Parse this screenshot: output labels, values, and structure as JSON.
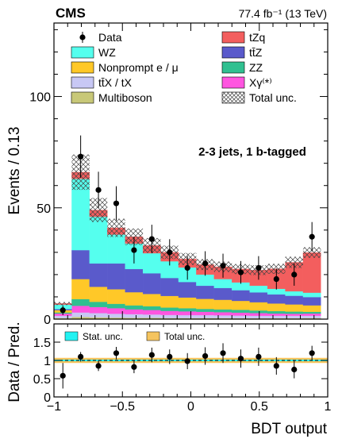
{
  "header": {
    "experiment": "CMS",
    "lumi": "77.4 fb⁻¹ (13 TeV)"
  },
  "main_panel": {
    "ylabel": "Events / 0.13",
    "annotation": "2-3 jets, 1 b-tagged",
    "y_ticks": [
      "0",
      "50",
      "100"
    ]
  },
  "ratio_panel": {
    "ylabel": "Data / Pred.",
    "xlabel": "BDT output",
    "y_ticks": [
      "0",
      "0.5",
      "1",
      "1.5"
    ],
    "x_ticks": [
      "−1",
      "−0.5",
      "0",
      "0.5",
      "1"
    ]
  },
  "legend": {
    "items": [
      {
        "key": "data",
        "label": "Data",
        "kind": "marker"
      },
      {
        "key": "tZq",
        "label": "tZq",
        "kind": "box"
      },
      {
        "key": "WZ",
        "label": "WZ",
        "kind": "box"
      },
      {
        "key": "ttZ",
        "label": "tt̄Z",
        "kind": "box"
      },
      {
        "key": "nonprompt",
        "label": "Nonprompt e / μ",
        "kind": "box"
      },
      {
        "key": "ZZ",
        "label": "ZZ",
        "kind": "box"
      },
      {
        "key": "ttX",
        "label": "tt̄X / tX",
        "kind": "box"
      },
      {
        "key": "Xgamma",
        "label": "Xγ⁽*⁾",
        "kind": "box"
      },
      {
        "key": "multiboson",
        "label": "Multiboson",
        "kind": "box"
      },
      {
        "key": "unc",
        "label": "Total unc.",
        "kind": "hatch"
      }
    ],
    "ratio_items": [
      {
        "key": "stat",
        "label": "Stat. unc.",
        "color": "#22f2f2"
      },
      {
        "key": "total",
        "label": "Total unc.",
        "color": "#f5c45e"
      }
    ]
  },
  "colors": {
    "multiboson": "#c8c878",
    "ttX": "#c8c8f5",
    "Xgamma": "#ff55e0",
    "ZZ": "#30c090",
    "nonprompt": "#ffc828",
    "ttZ": "#5a5acb",
    "WZ": "#55ffee",
    "tZq": "#f35e5e"
  },
  "chart_data": {
    "type": "bar",
    "stacked": true,
    "bin_edges": [
      -1,
      -0.87,
      -0.74,
      -0.61,
      -0.48,
      -0.35,
      -0.22,
      -0.09,
      0.04,
      0.17,
      0.3,
      0.43,
      0.56,
      0.69,
      0.82,
      0.95
    ],
    "xlim": [
      -1,
      1.0
    ],
    "ylim": [
      0,
      133
    ],
    "series": [
      {
        "name": "Multiboson",
        "key": "multiboson",
        "values": [
          0.5,
          1.0,
          0.8,
          0.7,
          0.6,
          0.6,
          0.5,
          0.5,
          0.5,
          0.5,
          0.4,
          0.4,
          0.4,
          0.4,
          0.5
        ]
      },
      {
        "name": "tt̄X / tX",
        "key": "ttX",
        "values": [
          1.0,
          2.0,
          1.9,
          1.7,
          1.6,
          1.5,
          1.4,
          1.3,
          1.3,
          1.2,
          1.2,
          1.1,
          1.1,
          1.1,
          1.0
        ]
      },
      {
        "name": "Xγ⁽*⁾",
        "key": "Xgamma",
        "values": [
          1.0,
          3.0,
          2.7,
          2.5,
          2.2,
          2.0,
          1.8,
          1.7,
          1.5,
          1.4,
          1.3,
          1.2,
          1.0,
          0.9,
          1.0
        ]
      },
      {
        "name": "ZZ",
        "key": "ZZ",
        "values": [
          0.5,
          3.0,
          2.4,
          2.0,
          1.8,
          1.7,
          1.5,
          1.4,
          1.3,
          1.3,
          1.3,
          1.2,
          1.1,
          1.0,
          0.8
        ]
      },
      {
        "name": "Nonprompt e / μ",
        "key": "nonprompt",
        "values": [
          1.0,
          9.0,
          6.7,
          6.5,
          5.9,
          5.5,
          5.2,
          4.8,
          4.5,
          4.3,
          4.0,
          3.7,
          3.4,
          3.2,
          2.9
        ]
      },
      {
        "name": "tt̄Z",
        "key": "ttZ",
        "values": [
          0.5,
          13.0,
          10.5,
          11.6,
          10.4,
          9.3,
          8.1,
          7.0,
          5.9,
          5.3,
          4.8,
          4.4,
          4.1,
          3.9,
          3.7
        ]
      },
      {
        "name": "WZ",
        "key": "WZ",
        "values": [
          2.0,
          32.0,
          21.0,
          13.0,
          11.5,
          9.0,
          7.5,
          6.5,
          5.0,
          4.0,
          3.5,
          3.0,
          2.5,
          2.0,
          2.0
        ]
      },
      {
        "name": "tZq",
        "key": "tZq",
        "values": [
          0.5,
          3.0,
          3.0,
          3.0,
          3.0,
          3.5,
          4.0,
          3.8,
          4.5,
          5.5,
          6.0,
          7.0,
          9.0,
          13.0,
          18.0
        ]
      }
    ],
    "total_unc_fraction": [
      0.1,
      0.12,
      0.11,
      0.1,
      0.1,
      0.1,
      0.1,
      0.1,
      0.1,
      0.1,
      0.1,
      0.1,
      0.1,
      0.1,
      0.08
    ],
    "data": [
      4,
      73,
      58,
      52,
      31,
      36,
      30,
      23,
      25,
      24,
      21,
      23,
      18,
      20,
      37
    ],
    "data_errors": [
      2.2,
      9.5,
      8.2,
      7.7,
      6.0,
      6.4,
      5.9,
      5.3,
      5.5,
      5.4,
      5.1,
      5.3,
      4.7,
      5.0,
      6.6
    ],
    "ratio": {
      "ylim": [
        0,
        2
      ],
      "values": [
        0.58,
        1.1,
        0.85,
        1.2,
        0.82,
        1.15,
        1.1,
        0.98,
        1.12,
        1.2,
        1.05,
        1.1,
        0.85,
        0.75,
        1.2
      ],
      "errors": [
        0.35,
        0.13,
        0.14,
        0.17,
        0.17,
        0.2,
        0.2,
        0.22,
        0.24,
        0.27,
        0.25,
        0.25,
        0.24,
        0.24,
        0.2
      ],
      "stat_unc": 0.02,
      "total_unc": 0.07
    }
  }
}
